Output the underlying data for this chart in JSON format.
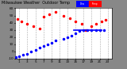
{
  "bg_color": "#888888",
  "plot_bg": "#ffffff",
  "legend_temp_color": "#ff0000",
  "legend_dew_color": "#0000ff",
  "ylim": [
    -10,
    60
  ],
  "xlim": [
    0,
    24
  ],
  "xticks": [
    1,
    3,
    5,
    7,
    9,
    11,
    13,
    15,
    17,
    19,
    21,
    23
  ],
  "xtick_labels": [
    "1",
    "3",
    "5",
    "7",
    "9",
    "11",
    "13",
    "15",
    "17",
    "19",
    "21",
    "23"
  ],
  "yticks": [
    -10,
    0,
    10,
    20,
    30,
    40,
    50,
    60
  ],
  "ytick_labels": [
    "-10",
    "0",
    "10",
    "20",
    "30",
    "40",
    "50",
    "60"
  ],
  "temp_x": [
    0.5,
    1.5,
    3,
    4.5,
    6,
    7,
    8.5,
    10,
    12,
    13.5,
    15,
    16.5,
    17.5,
    19,
    20,
    21.5,
    22.5
  ],
  "temp_y": [
    45,
    42,
    38,
    35,
    32,
    48,
    52,
    55,
    50,
    46,
    42,
    38,
    30,
    35,
    38,
    42,
    44
  ],
  "dew_x": [
    0.2,
    1,
    2,
    3,
    4,
    5,
    6,
    7,
    8,
    9,
    10,
    12,
    13,
    14,
    15,
    16,
    17,
    18,
    19,
    20,
    21,
    22
  ],
  "dew_y": [
    -8,
    -7,
    -5,
    -3,
    0,
    2,
    5,
    8,
    10,
    12,
    15,
    18,
    20,
    22,
    25,
    28,
    30,
    30,
    30,
    30,
    30,
    30
  ],
  "dew_line_x": [
    14.5,
    21.5
  ],
  "dew_line_y": [
    30,
    30
  ],
  "grid_color": "#aaaaaa",
  "grid_style": "--",
  "temp_color": "#ff0000",
  "dew_color": "#0000ff",
  "marker_size": 1.5,
  "tick_font_size": 3,
  "title_font_size": 3.5
}
